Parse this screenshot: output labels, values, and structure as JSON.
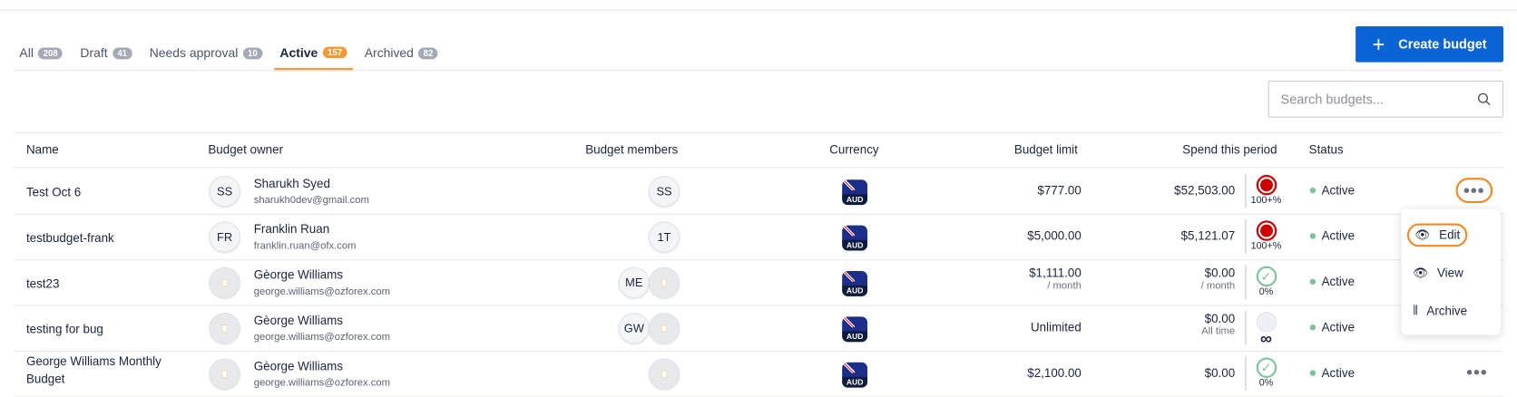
{
  "tabs": [
    {
      "label": "All",
      "count": "208"
    },
    {
      "label": "Draft",
      "count": "41"
    },
    {
      "label": "Needs approval",
      "count": "10"
    },
    {
      "label": "Active",
      "count": "157",
      "active": true
    },
    {
      "label": "Archived",
      "count": "82"
    }
  ],
  "create_button": "Create budget",
  "search": {
    "placeholder": "Search budgets..."
  },
  "columns": [
    "Name",
    "Budget owner",
    "Budget members",
    "Currency",
    "Budget limit",
    "Spend this period",
    "Status"
  ],
  "rows": [
    {
      "name": "Test Oct 6",
      "owner_initials": "SS",
      "owner_name": "Sharukh Syed",
      "owner_email": "sharukh0dev@gmail.com",
      "members": [
        "SS"
      ],
      "currency": "AUD",
      "limit": "$777.00",
      "limit_sub": "",
      "spend": "$52,503.00",
      "spend_sub": "",
      "indicator": "over",
      "indicator_label": "100+%",
      "status": "Active"
    },
    {
      "name": "testbudget-frank",
      "owner_initials": "FR",
      "owner_name": "Franklin Ruan",
      "owner_email": "franklin.ruan@ofx.com",
      "members": [
        "1T"
      ],
      "currency": "AUD",
      "limit": "$5,000.00",
      "limit_sub": "",
      "spend": "$5,121.07",
      "spend_sub": "",
      "indicator": "over",
      "indicator_label": "100+%",
      "status": "Active"
    },
    {
      "name": "test23",
      "owner_initials": "",
      "owner_name": "Gèorge Williams",
      "owner_email": "george.williams@ozforex.com",
      "members": [
        "ME",
        ""
      ],
      "currency": "AUD",
      "limit": "$1,111.00",
      "limit_sub": "/ month",
      "spend": "$0.00",
      "spend_sub": "/ month",
      "indicator": "ok",
      "indicator_label": "0%",
      "status": "Active"
    },
    {
      "name": "testing for bug",
      "owner_initials": "",
      "owner_name": "Gèorge Williams",
      "owner_email": "george.williams@ozforex.com",
      "members": [
        "GW",
        ""
      ],
      "currency": "AUD",
      "limit": "Unlimited",
      "limit_sub": "",
      "spend": "$0.00",
      "spend_sub": "All time",
      "indicator": "none",
      "indicator_label": "∞",
      "status": "Active"
    },
    {
      "name": "George Williams Monthly Budget",
      "owner_initials": "",
      "owner_name": "Gèorge Williams",
      "owner_email": "george.williams@ozforex.com",
      "members": [
        ""
      ],
      "currency": "AUD",
      "limit": "$2,100.00",
      "limit_sub": "",
      "spend": "$0.00",
      "spend_sub": "",
      "indicator": "ok",
      "indicator_label": "0%",
      "status": "Active"
    }
  ],
  "row_menu": {
    "items": [
      {
        "label": "Edit",
        "icon": "eye-icon"
      },
      {
        "label": "View",
        "icon": "eye-icon"
      },
      {
        "label": "Archive",
        "icon": "archive-icon"
      }
    ]
  },
  "colors": {
    "primary": "#0a64d6",
    "accent": "#f29a38",
    "active_dot": "#7cc49a",
    "over": "#cc0000"
  }
}
